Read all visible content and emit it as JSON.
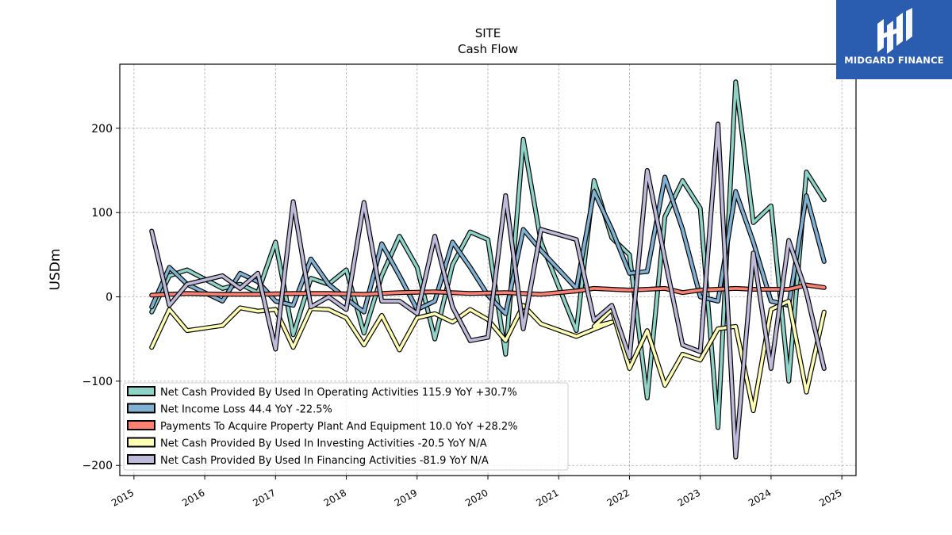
{
  "chart_data": {
    "type": "line",
    "title": "SITE",
    "subtitle": "Cash Flow",
    "ylabel": "USDm",
    "xlabel": "",
    "xlim": [
      2014.8,
      2025.2
    ],
    "ylim": [
      -212,
      276
    ],
    "x_ticks": [
      "2015",
      "2016",
      "2017",
      "2018",
      "2019",
      "2020",
      "2021",
      "2022",
      "2023",
      "2024",
      "2025"
    ],
    "y_ticks": [
      200,
      100,
      0,
      -100,
      -200
    ],
    "y_tick_labels": [
      "200",
      "100",
      "0",
      "−100",
      "−200"
    ],
    "grid": true,
    "legend_position": "lower-left",
    "series": [
      {
        "name": "Net Cash Provided By Used In Operating Activities  115.9 YoY +30.7%",
        "color": "#8dd3c7",
        "points": [
          [
            2015.25,
            -18
          ],
          [
            2015.5,
            25
          ],
          [
            2015.75,
            32
          ],
          [
            2016.25,
            10
          ],
          [
            2016.5,
            15
          ],
          [
            2016.75,
            5
          ],
          [
            2017.0,
            65
          ],
          [
            2017.25,
            -45
          ],
          [
            2017.5,
            22
          ],
          [
            2017.75,
            15
          ],
          [
            2018.0,
            32
          ],
          [
            2018.25,
            -43
          ],
          [
            2018.5,
            25
          ],
          [
            2018.75,
            72
          ],
          [
            2019.0,
            35
          ],
          [
            2019.25,
            -50
          ],
          [
            2019.5,
            38
          ],
          [
            2019.75,
            77
          ],
          [
            2020.0,
            68
          ],
          [
            2020.25,
            -68
          ],
          [
            2020.5,
            187
          ],
          [
            2020.75,
            65
          ],
          [
            2021.25,
            -40
          ],
          [
            2021.5,
            138
          ],
          [
            2021.75,
            70
          ],
          [
            2022.0,
            50
          ],
          [
            2022.25,
            -120
          ],
          [
            2022.5,
            95
          ],
          [
            2022.75,
            138
          ],
          [
            2023.0,
            105
          ],
          [
            2023.25,
            -155
          ],
          [
            2023.5,
            255
          ],
          [
            2023.75,
            88
          ],
          [
            2024.0,
            108
          ],
          [
            2024.25,
            -100
          ],
          [
            2024.5,
            148
          ],
          [
            2024.75,
            115
          ]
        ]
      },
      {
        "name": "Net Income Loss  44.4 YoY -22.5%",
        "color": "#80b1d3",
        "points": [
          [
            2015.25,
            -12
          ],
          [
            2015.5,
            35
          ],
          [
            2015.75,
            15
          ],
          [
            2016.25,
            -5
          ],
          [
            2016.5,
            28
          ],
          [
            2016.75,
            18
          ],
          [
            2017.0,
            -5
          ],
          [
            2017.25,
            -10
          ],
          [
            2017.5,
            45
          ],
          [
            2017.75,
            15
          ],
          [
            2018.0,
            -2
          ],
          [
            2018.25,
            -18
          ],
          [
            2018.5,
            63
          ],
          [
            2018.75,
            25
          ],
          [
            2019.0,
            -15
          ],
          [
            2019.25,
            -5
          ],
          [
            2019.5,
            65
          ],
          [
            2019.75,
            35
          ],
          [
            2020.0,
            2
          ],
          [
            2020.25,
            -20
          ],
          [
            2020.5,
            80
          ],
          [
            2020.75,
            55
          ],
          [
            2021.25,
            10
          ],
          [
            2021.5,
            125
          ],
          [
            2021.75,
            80
          ],
          [
            2022.0,
            28
          ],
          [
            2022.25,
            30
          ],
          [
            2022.5,
            142
          ],
          [
            2022.75,
            80
          ],
          [
            2023.0,
            0
          ],
          [
            2023.25,
            -5
          ],
          [
            2023.5,
            125
          ],
          [
            2023.75,
            65
          ],
          [
            2024.0,
            -5
          ],
          [
            2024.25,
            -10
          ],
          [
            2024.5,
            120
          ],
          [
            2024.75,
            42
          ]
        ]
      },
      {
        "name": "Payments To Acquire Property Plant And Equipment  10.0 YoY +28.2%",
        "color": "#fb8072",
        "points": [
          [
            2015.25,
            2
          ],
          [
            2015.75,
            4
          ],
          [
            2016.25,
            3
          ],
          [
            2016.75,
            3
          ],
          [
            2017.25,
            4
          ],
          [
            2017.75,
            4
          ],
          [
            2018.25,
            3
          ],
          [
            2018.75,
            5
          ],
          [
            2019.25,
            6
          ],
          [
            2019.75,
            4
          ],
          [
            2020.25,
            5
          ],
          [
            2020.75,
            3
          ],
          [
            2021.25,
            7
          ],
          [
            2021.5,
            10
          ],
          [
            2021.75,
            9
          ],
          [
            2022.0,
            8
          ],
          [
            2022.25,
            9
          ],
          [
            2022.5,
            10
          ],
          [
            2022.75,
            5
          ],
          [
            2023.0,
            8
          ],
          [
            2023.5,
            10
          ],
          [
            2023.75,
            9
          ],
          [
            2024.25,
            9
          ],
          [
            2024.5,
            14
          ],
          [
            2024.75,
            11
          ]
        ]
      },
      {
        "name": "Net Cash Provided By Used In Investing Activities  -20.5 YoY N/A",
        "color": "#ffffb3",
        "points": [
          [
            2015.25,
            -60
          ],
          [
            2015.5,
            -15
          ],
          [
            2015.75,
            -40
          ],
          [
            2016.25,
            -34
          ],
          [
            2016.5,
            -13
          ],
          [
            2016.75,
            -17
          ],
          [
            2017.0,
            -15
          ],
          [
            2017.25,
            -60
          ],
          [
            2017.5,
            -14
          ],
          [
            2017.75,
            -15
          ],
          [
            2018.0,
            -25
          ],
          [
            2018.25,
            -57
          ],
          [
            2018.5,
            -22
          ],
          [
            2018.75,
            -63
          ],
          [
            2019.0,
            -25
          ],
          [
            2019.25,
            -20
          ],
          [
            2019.5,
            -30
          ],
          [
            2019.75,
            -15
          ],
          [
            2020.0,
            -27
          ],
          [
            2020.25,
            -52
          ],
          [
            2020.5,
            -10
          ],
          [
            2020.75,
            -32
          ],
          [
            2021.25,
            -47
          ],
          [
            2021.75,
            -30
          ],
          [
            2021.5,
            -35
          ],
          [
            2021.75,
            -15
          ],
          [
            2022.0,
            -85
          ],
          [
            2022.25,
            -40
          ],
          [
            2022.5,
            -105
          ],
          [
            2022.75,
            -68
          ],
          [
            2023.0,
            -75
          ],
          [
            2023.25,
            -38
          ],
          [
            2023.5,
            -35
          ],
          [
            2023.75,
            -135
          ],
          [
            2024.0,
            -15
          ],
          [
            2024.25,
            -5
          ],
          [
            2024.5,
            -113
          ],
          [
            2024.75,
            -18
          ]
        ]
      },
      {
        "name": "Net Cash Provided By Used In Financing Activities  -81.9 YoY N/A",
        "color": "#bebada",
        "points": [
          [
            2015.25,
            78
          ],
          [
            2015.5,
            -10
          ],
          [
            2015.75,
            15
          ],
          [
            2016.25,
            25
          ],
          [
            2016.5,
            10
          ],
          [
            2016.75,
            28
          ],
          [
            2017.0,
            -62
          ],
          [
            2017.25,
            113
          ],
          [
            2017.5,
            -12
          ],
          [
            2017.75,
            0
          ],
          [
            2018.0,
            -15
          ],
          [
            2018.25,
            112
          ],
          [
            2018.5,
            -5
          ],
          [
            2018.75,
            -5
          ],
          [
            2019.0,
            -20
          ],
          [
            2019.25,
            72
          ],
          [
            2019.5,
            -12
          ],
          [
            2019.75,
            -52
          ],
          [
            2020.0,
            -48
          ],
          [
            2020.25,
            120
          ],
          [
            2020.5,
            -38
          ],
          [
            2020.75,
            80
          ],
          [
            2021.25,
            68
          ],
          [
            2021.5,
            -28
          ],
          [
            2021.75,
            -10
          ],
          [
            2022.0,
            -72
          ],
          [
            2022.25,
            150
          ],
          [
            2022.5,
            45
          ],
          [
            2022.75,
            -57
          ],
          [
            2023.0,
            -65
          ],
          [
            2023.25,
            205
          ],
          [
            2023.5,
            -190
          ],
          [
            2023.75,
            52
          ],
          [
            2024.0,
            -85
          ],
          [
            2024.25,
            67
          ],
          [
            2024.5,
            5
          ],
          [
            2024.75,
            -85
          ]
        ]
      }
    ]
  },
  "brand": {
    "name": "MIDGARD FINANCE",
    "color": "#2a5db0"
  }
}
